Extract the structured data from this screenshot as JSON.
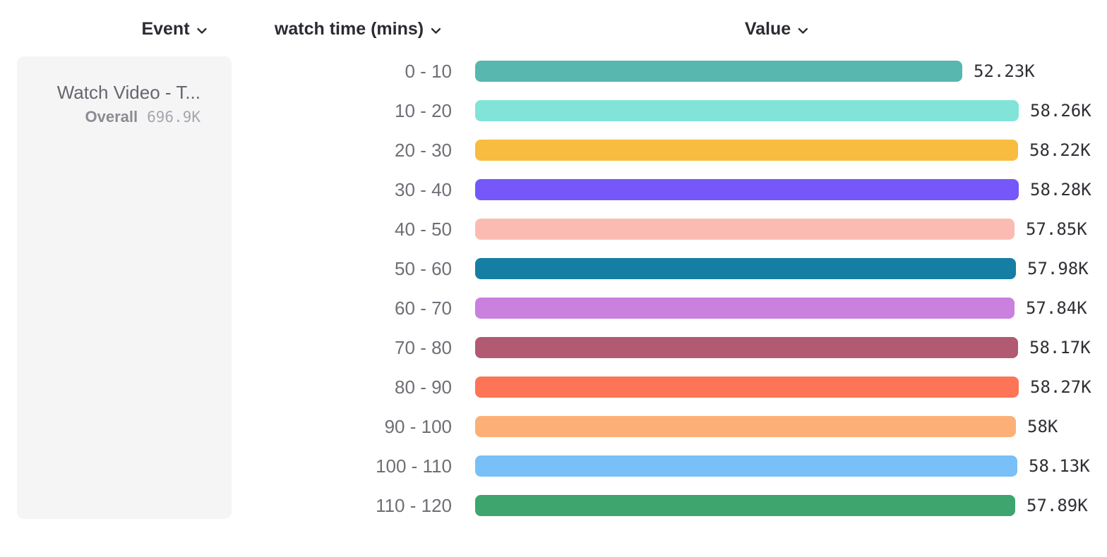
{
  "header": {
    "event_label": "Event",
    "breakdown_label": "watch time (mins)",
    "value_label": "Value"
  },
  "event_card": {
    "title": "Watch Video - T...",
    "overall_label": "Overall",
    "overall_value": "696.9K"
  },
  "chart_data": {
    "type": "bar",
    "orientation": "horizontal",
    "title": "",
    "xlabel": "Value",
    "ylabel": "watch time (mins)",
    "categories": [
      "0 - 10",
      "10 - 20",
      "20 - 30",
      "30 - 40",
      "40 - 50",
      "50 - 60",
      "60 - 70",
      "70 - 80",
      "80 - 90",
      "90 - 100",
      "100 - 110",
      "110 - 120"
    ],
    "values": [
      52230,
      58260,
      58220,
      58280,
      57850,
      57980,
      57840,
      58170,
      58270,
      58000,
      58130,
      57890
    ],
    "value_labels": [
      "52.23K",
      "58.26K",
      "58.22K",
      "58.28K",
      "57.85K",
      "57.98K",
      "57.84K",
      "58.17K",
      "58.27K",
      "58K",
      "58.13K",
      "57.89K"
    ],
    "bar_colors": [
      "#58b7af",
      "#82e3d9",
      "#f7bc40",
      "#7557fa",
      "#fcbbb2",
      "#157fa3",
      "#c980de",
      "#b25a72",
      "#fd7457",
      "#fcb078",
      "#78c0f7",
      "#3ea56f"
    ],
    "xlim": [
      0,
      58280
    ],
    "grid": false,
    "legend": "none"
  },
  "colors": {
    "header_text": "#2b2b33",
    "category_text": "#6e6e76",
    "value_text": "#2f2f35",
    "card_bg": "#f5f5f6",
    "card_title_text": "#66666e",
    "overall_label_text": "#8b8b93",
    "overall_value_text": "#a6a6ae"
  }
}
